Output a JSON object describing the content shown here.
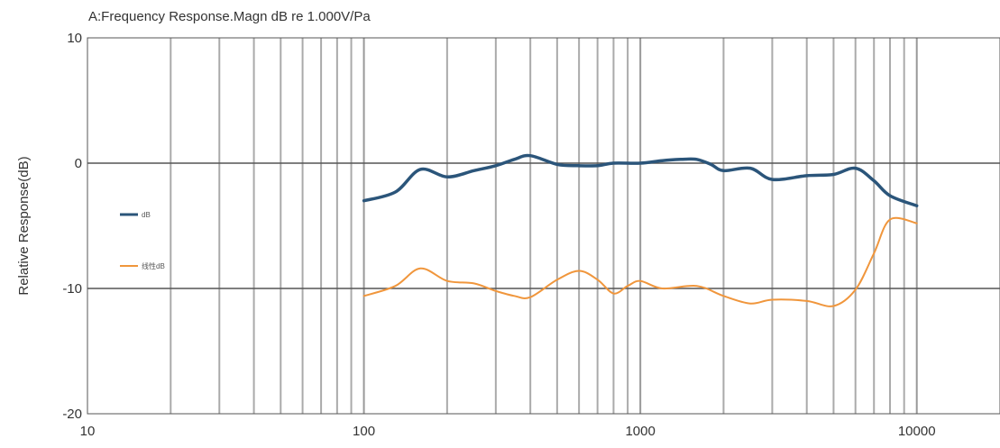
{
  "chart_data": {
    "type": "line",
    "title": "A:Frequency Response.Magn dB re 1.000V/Pa",
    "xlabel": "",
    "ylabel": "Relative Response(dB)",
    "xscale": "log",
    "xlim": [
      10,
      20000
    ],
    "ylim": [
      -20,
      10
    ],
    "x_ticks": [
      10,
      100,
      1000,
      10000
    ],
    "x_tick_labels": [
      "10",
      "100",
      "1000",
      "10000"
    ],
    "y_ticks": [
      10,
      0,
      -10,
      -20
    ],
    "y_tick_labels": [
      "10",
      "0",
      "-10",
      "-20"
    ],
    "grid": true,
    "legend_position": "left",
    "series": [
      {
        "name": "dB",
        "color": "#2b557a",
        "x": [
          100,
          130,
          160,
          200,
          250,
          300,
          350,
          400,
          500,
          600,
          700,
          800,
          1000,
          1200,
          1400,
          1600,
          1800,
          2000,
          2500,
          3000,
          4000,
          5000,
          6000,
          7000,
          8000,
          10000
        ],
        "y": [
          -3.0,
          -2.3,
          -0.5,
          -1.1,
          -0.6,
          -0.2,
          0.3,
          0.6,
          -0.1,
          -0.2,
          -0.2,
          0.0,
          0.0,
          0.2,
          0.3,
          0.3,
          -0.1,
          -0.6,
          -0.4,
          -1.3,
          -1.0,
          -0.9,
          -0.4,
          -1.4,
          -2.6,
          -3.4
        ]
      },
      {
        "name": "线性dB",
        "color": "#f0963c",
        "x": [
          100,
          130,
          160,
          200,
          250,
          300,
          350,
          400,
          500,
          600,
          700,
          800,
          900,
          1000,
          1200,
          1600,
          2000,
          2500,
          3000,
          4000,
          5000,
          6000,
          7000,
          8000,
          10000
        ],
        "y": [
          -10.6,
          -9.8,
          -8.4,
          -9.4,
          -9.6,
          -10.2,
          -10.6,
          -10.7,
          -9.3,
          -8.6,
          -9.3,
          -10.4,
          -9.8,
          -9.4,
          -10.0,
          -9.8,
          -10.6,
          -11.2,
          -10.9,
          -11.0,
          -11.4,
          -10.1,
          -7.2,
          -4.5,
          -4.8
        ]
      }
    ]
  }
}
